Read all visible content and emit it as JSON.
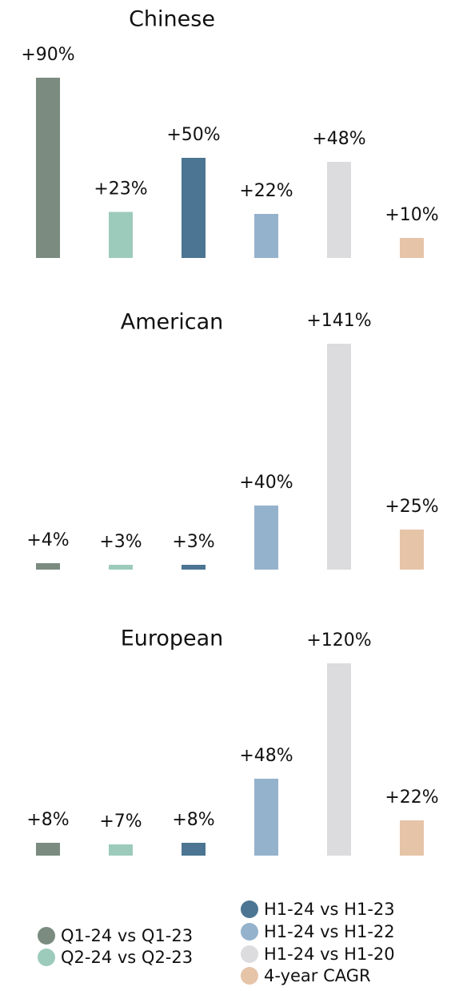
{
  "chart_data": [
    {
      "type": "bar",
      "title": "Chinese",
      "values": [
        90,
        23,
        50,
        22,
        48,
        10
      ],
      "value_labels": [
        "+90%",
        "+23%",
        "+50%",
        "+22%",
        "+48%",
        "+10%"
      ],
      "ylim": [
        0,
        100
      ]
    },
    {
      "type": "bar",
      "title": "American",
      "values": [
        4,
        3,
        3,
        40,
        141,
        25
      ],
      "value_labels": [
        "+4%",
        "+3%",
        "+3%",
        "+40%",
        "+141%",
        "+25%"
      ],
      "ylim": [
        0,
        150
      ]
    },
    {
      "type": "bar",
      "title": "European",
      "values": [
        8,
        7,
        8,
        48,
        120,
        22
      ],
      "value_labels": [
        "+8%",
        "+7%",
        "+8%",
        "+48%",
        "+120%",
        "+22%"
      ],
      "ylim": [
        0,
        150
      ]
    }
  ],
  "legend": {
    "items": [
      {
        "name": "Q1-24 vs Q1-23",
        "color": "#7b8b80"
      },
      {
        "name": "Q2-24 vs Q2-23",
        "color": "#9dcbbb"
      },
      {
        "name": "H1-24 vs H1-23",
        "color": "#4b7592"
      },
      {
        "name": "H1-24 vs H1-22",
        "color": "#95b2cc"
      },
      {
        "name": "H1-24 vs H1-20",
        "color": "#dcdcde"
      },
      {
        "name": "4-year CAGR",
        "color": "#e6c4a8"
      }
    ]
  }
}
